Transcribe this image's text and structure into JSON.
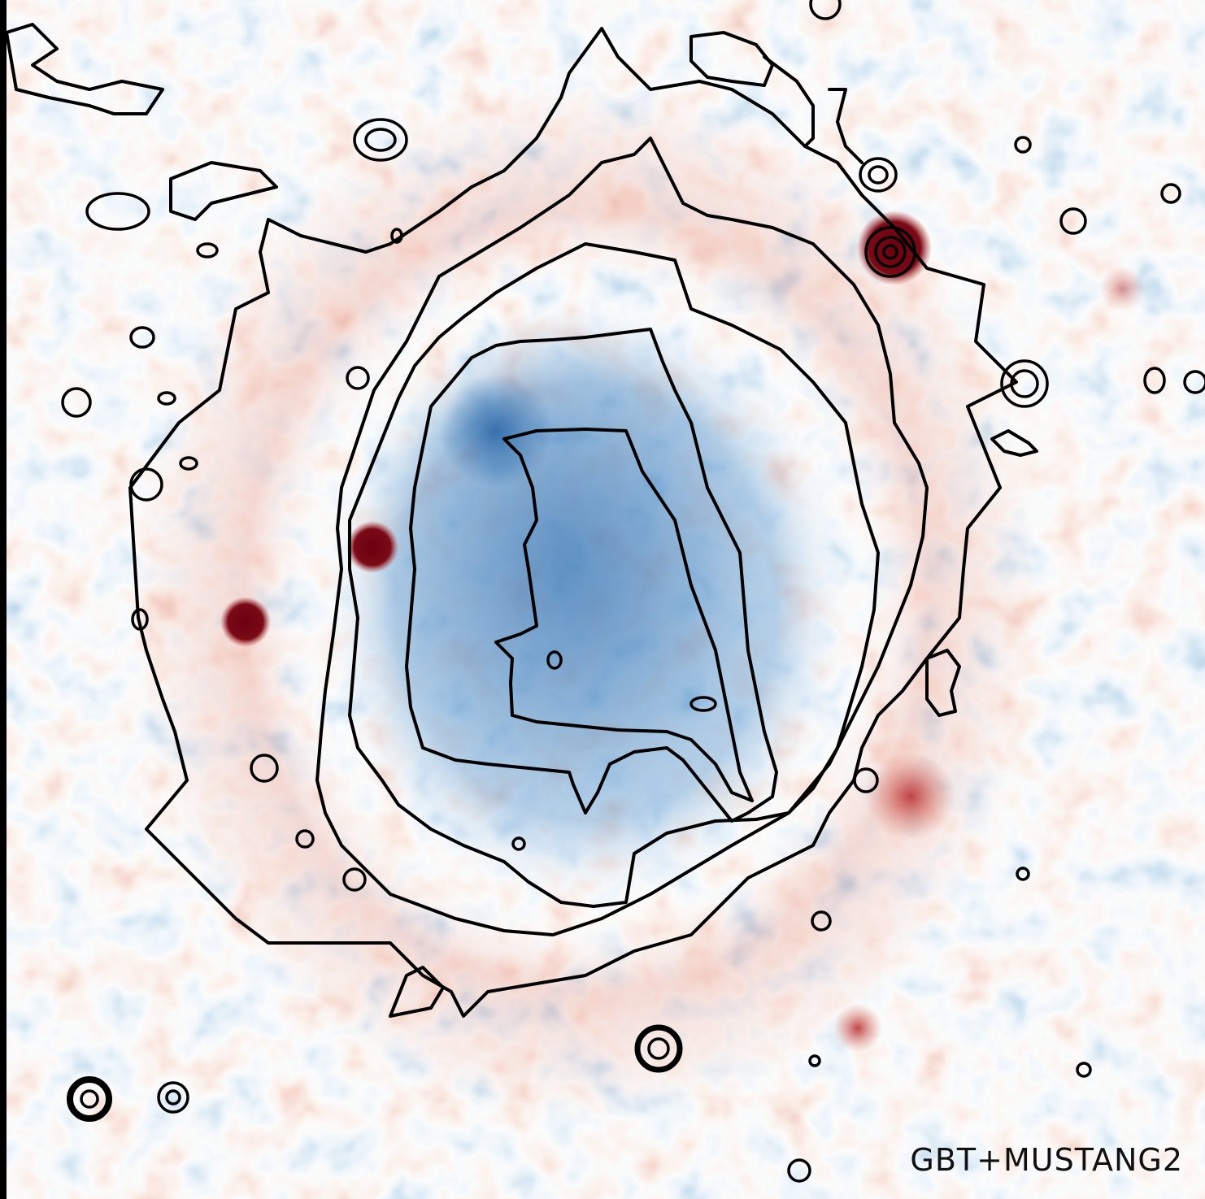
{
  "label": "GBT+MUSTANG2"
}
